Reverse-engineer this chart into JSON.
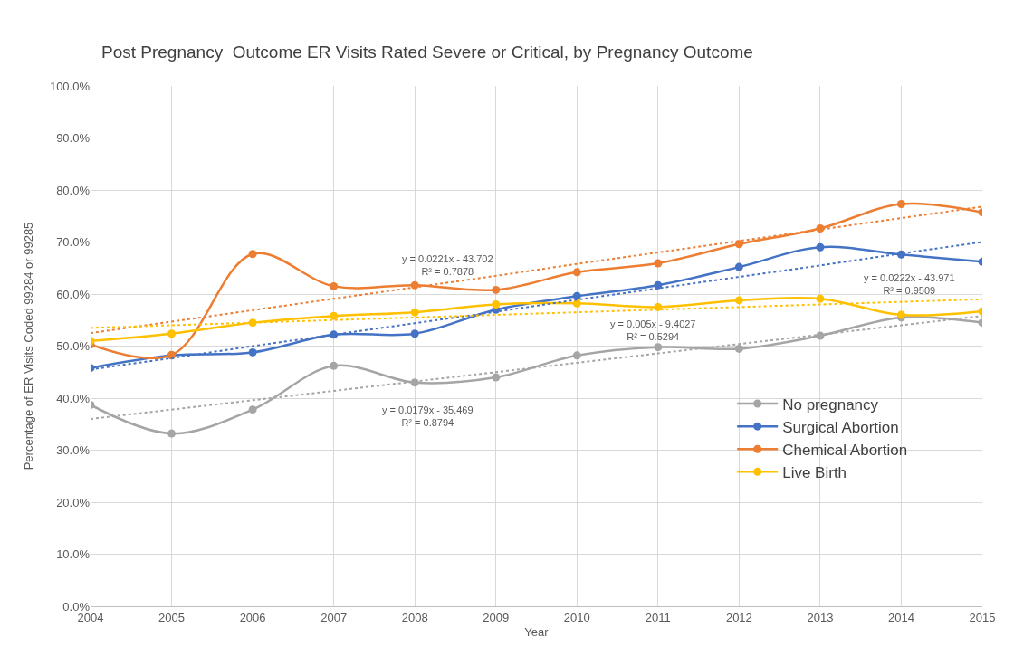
{
  "chart_data": {
    "type": "line",
    "title": "Post Pregnancy  Outcome ER Visits Rated Severe or Critical, by Pregnancy Outcome",
    "xlabel": "Year",
    "ylabel": "Percentage of ER Visits Coded 99284 or 99285",
    "x": [
      2004,
      2005,
      2006,
      2007,
      2008,
      2009,
      2010,
      2011,
      2012,
      2013,
      2014,
      2015
    ],
    "series": [
      {
        "name": "No pregnancy",
        "color": "#a5a5a5",
        "values": [
          38.7,
          33.2,
          37.8,
          46.2,
          43.0,
          44.0,
          48.2,
          49.8,
          49.5,
          52.0,
          55.5,
          54.5
        ]
      },
      {
        "name": "Surgical Abortion",
        "color": "#4472c4",
        "values": [
          45.8,
          48.2,
          48.8,
          52.2,
          52.4,
          57.0,
          59.6,
          61.7,
          65.2,
          69.0,
          67.6,
          66.2
        ]
      },
      {
        "name": "Chemical Abortion",
        "color": "#ed7d31",
        "values": [
          50.3,
          48.3,
          67.7,
          61.5,
          61.7,
          60.8,
          64.2,
          65.9,
          69.6,
          72.6,
          77.3,
          75.7
        ]
      },
      {
        "name": "Live Birth",
        "color": "#ffc000",
        "values": [
          51.0,
          52.4,
          54.5,
          55.8,
          56.5,
          58.0,
          58.2,
          57.5,
          58.8,
          59.1,
          56.0,
          56.7
        ]
      },
      {
        "color": "#a5a5a5",
        "values": [
          36.0,
          37.8,
          39.6,
          41.4,
          43.2,
          45.0,
          46.8,
          48.6,
          50.4,
          52.2,
          54.0,
          55.8
        ],
        "marker": "none",
        "line_style": "dotted"
      },
      {
        "color": "#4472c4",
        "values": [
          45.5,
          47.7,
          50.0,
          52.2,
          54.4,
          56.6,
          58.9,
          61.1,
          63.3,
          65.5,
          67.8,
          70.0
        ],
        "marker": "none",
        "line_style": "dotted"
      },
      {
        "color": "#ed7d31",
        "values": [
          52.5,
          54.7,
          56.9,
          59.1,
          61.3,
          63.5,
          65.8,
          68.0,
          70.2,
          72.4,
          74.6,
          76.8
        ],
        "marker": "none",
        "line_style": "dotted"
      },
      {
        "color": "#ffc000",
        "values": [
          53.5,
          54.0,
          54.5,
          55.0,
          55.5,
          56.0,
          56.5,
          57.0,
          57.5,
          58.0,
          58.5,
          59.0
        ],
        "marker": "none",
        "line_style": "dotted"
      }
    ],
    "annotations": [
      "y = 0.0221x - 43.702\nR² = 0.7878",
      "y = 0.0179x - 35.469\nR² = 0.8794",
      "y = 0.005x - 9.4027\nR² = 0.5294",
      "y = 0.0222x - 43.971\nR² = 0.9509"
    ],
    "xlim": [
      2004,
      2015
    ],
    "xticks": [
      2004,
      2005,
      2006,
      2007,
      2008,
      2009,
      2010,
      2011,
      2012,
      2013,
      2014,
      2015
    ],
    "ylim": [
      0,
      100
    ],
    "yticks": [
      {
        "value": 0,
        "label": "0.0%"
      },
      {
        "value": 10,
        "label": "10.0%"
      },
      {
        "value": 20,
        "label": "20.0%"
      },
      {
        "value": 30,
        "label": "30.0%"
      },
      {
        "value": 40,
        "label": "40.0%"
      },
      {
        "value": 50,
        "label": "50.0%"
      },
      {
        "value": 60,
        "label": "60.0%"
      },
      {
        "value": 70,
        "label": "70.0%"
      },
      {
        "value": 80,
        "label": "80.0%"
      },
      {
        "value": 90,
        "label": "90.0%"
      },
      {
        "value": 100,
        "label": "100.0%"
      }
    ],
    "grid": true,
    "legend": "bottom right",
    "marker": "circle",
    "line_style": "solid"
  }
}
